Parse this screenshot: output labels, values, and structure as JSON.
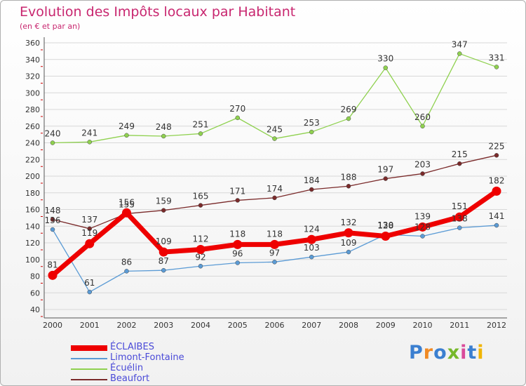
{
  "title": "Evolution des Impôts locaux par Habitant",
  "subtitle": "(en € et par an)",
  "logo_text": "Proxiti",
  "chart_data": {
    "type": "line",
    "categories": [
      "2000",
      "2001",
      "2002",
      "2003",
      "2004",
      "2005",
      "2006",
      "2007",
      "2008",
      "2009",
      "2010",
      "2011",
      "2012"
    ],
    "ylim": [
      40,
      360
    ],
    "ytick_step": 20,
    "grid": "horizontal",
    "legend_placement": "bottom-left",
    "series": [
      {
        "name": "ÉCLAIBES",
        "color": "#ee0000",
        "emphasis": true,
        "values": [
          81,
          119,
          156,
          109,
          112,
          118,
          118,
          124,
          132,
          128,
          139,
          151,
          182
        ]
      },
      {
        "name": "Limont-Fontaine",
        "color": "#5b9bd5",
        "values": [
          136,
          61,
          86,
          87,
          92,
          96,
          97,
          103,
          109,
          130,
          128,
          138,
          141
        ]
      },
      {
        "name": "Écuélin",
        "color": "#8fd14f",
        "values": [
          240,
          241,
          249,
          248,
          251,
          270,
          245,
          253,
          269,
          330,
          260,
          347,
          331
        ]
      },
      {
        "name": "Beaufort",
        "color": "#7a2a2a",
        "values": [
          148,
          137,
          155,
          159,
          165,
          171,
          174,
          184,
          188,
          197,
          203,
          215,
          225
        ]
      }
    ]
  }
}
